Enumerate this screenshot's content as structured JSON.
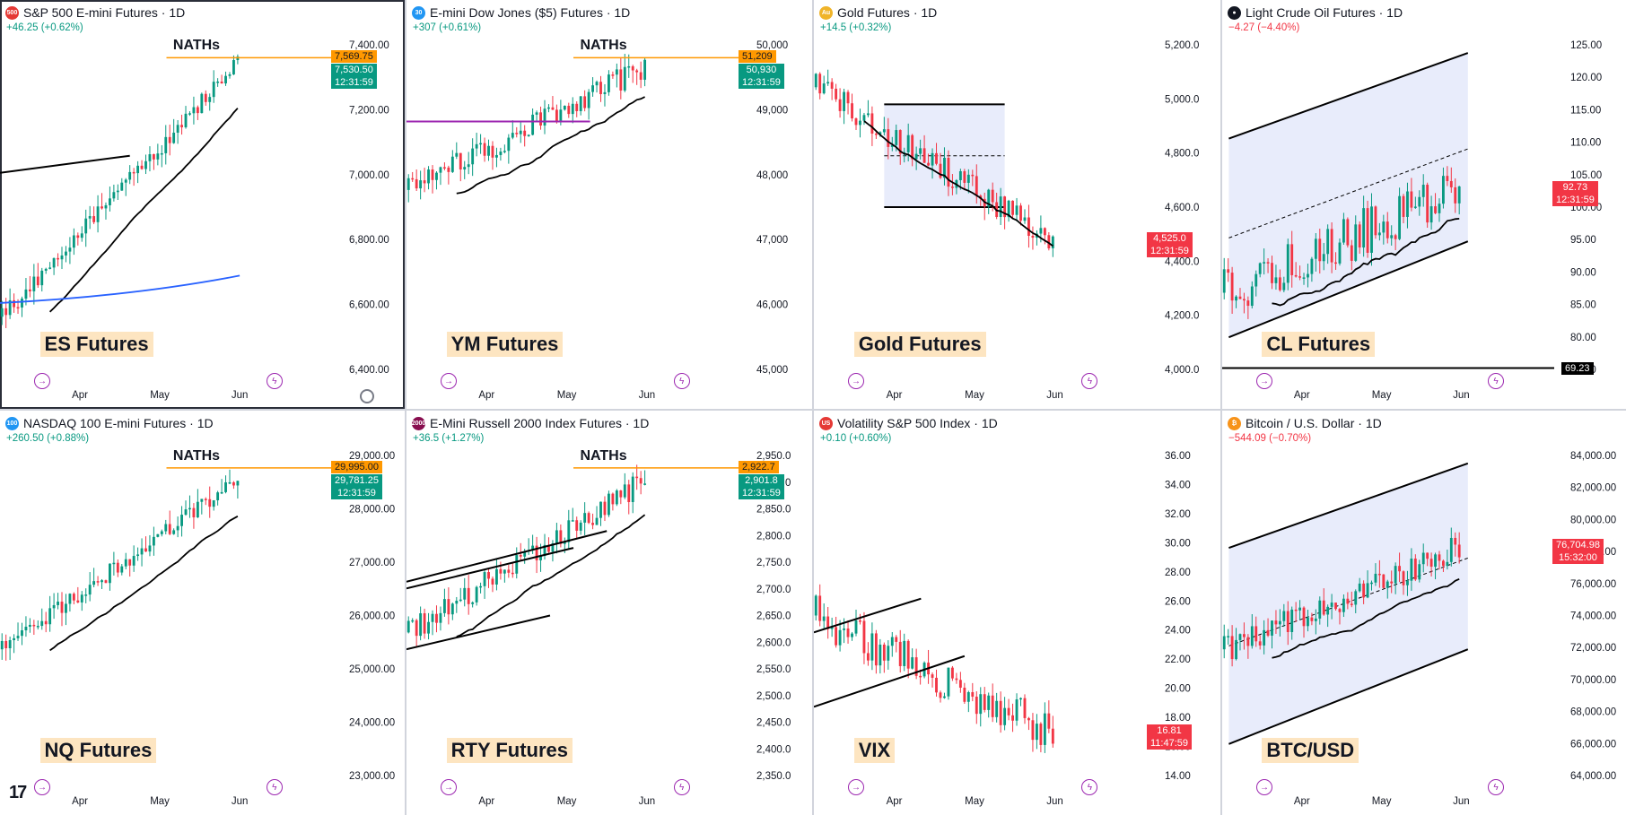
{
  "layout_grid": "4x2",
  "colors": {
    "up": "#089981",
    "down": "#f23645",
    "ma": "#000000",
    "ma200": "#2962ff",
    "ath_line": "#ff9800",
    "channel_fill": "#e8ecfb",
    "purple_line": "#9c27b0",
    "label_bg": "#fde5c1"
  },
  "panels": [
    {
      "id": "es",
      "icon_text": "500",
      "icon_color": "#e53935",
      "title": "S&P 500 E-mini Futures · 1D",
      "change": "+46.25 (+0.62%)",
      "direction": "up",
      "label": "ES Futures",
      "nath": "NATHs",
      "ath_price": "7,569.75",
      "last_price": "7,530.50",
      "countdown": "12:31:59",
      "y_ticks": [
        "7,400.00",
        "7,200.00",
        "7,000.00",
        "6,800.00",
        "6,600.00",
        "6,400.00"
      ],
      "x_ticks": [
        "Apr",
        "May",
        "Jun"
      ]
    },
    {
      "id": "ym",
      "icon_text": "30",
      "icon_color": "#2196f3",
      "title": "E-mini Dow Jones ($5) Futures · 1D",
      "change": "+307 (+0.61%)",
      "direction": "up",
      "label": "YM Futures",
      "nath": "NATHs",
      "ath_price": "51,209",
      "last_price": "50,930",
      "countdown": "12:31:59",
      "y_ticks": [
        "50,000",
        "49,000",
        "48,000",
        "47,000",
        "46,000",
        "45,000"
      ],
      "x_ticks": [
        "Apr",
        "May",
        "Jun"
      ]
    },
    {
      "id": "gc",
      "icon_text": "Au",
      "icon_color": "#f0b429",
      "title": "Gold Futures · 1D",
      "change": "+14.5 (+0.32%)",
      "direction": "up",
      "label": "Gold Futures",
      "nath": "",
      "ath_price": "",
      "last_price": "4,525.0",
      "countdown": "12:31:59",
      "y_ticks": [
        "5,200.0",
        "5,000.0",
        "4,800.0",
        "4,600.0",
        "4,400.0",
        "4,200.0",
        "4,000.0"
      ],
      "x_ticks": [
        "Apr",
        "May",
        "Jun"
      ]
    },
    {
      "id": "cl",
      "icon_text": "●",
      "icon_color": "#131722",
      "title": "Light Crude Oil Futures · 1D",
      "change": "−4.27 (−4.40%)",
      "direction": "down",
      "label": "CL Futures",
      "nath": "",
      "ath_price": "",
      "last_price": "92.73",
      "countdown": "12:31:59",
      "level_tag": "69.23",
      "y_ticks": [
        "125.00",
        "120.00",
        "115.00",
        "110.00",
        "105.00",
        "100.00",
        "95.00",
        "90.00",
        "85.00",
        "80.00",
        "75.00"
      ],
      "x_ticks": [
        "Apr",
        "May",
        "Jun"
      ]
    },
    {
      "id": "nq",
      "icon_text": "100",
      "icon_color": "#2196f3",
      "title": "NASDAQ 100 E-mini Futures · 1D",
      "change": "+260.50 (+0.88%)",
      "direction": "up",
      "label": "NQ Futures",
      "nath": "NATHs",
      "ath_price": "29,995.00",
      "last_price": "29,781.25",
      "countdown": "12:31:59",
      "y_ticks": [
        "29,000.00",
        "28,000.00",
        "27,000.00",
        "26,000.00",
        "25,000.00",
        "24,000.00",
        "23,000.00"
      ],
      "x_ticks": [
        "Apr",
        "May",
        "Jun"
      ]
    },
    {
      "id": "rty",
      "icon_text": "2000",
      "icon_color": "#880e4f",
      "title": "E-Mini Russell 2000 Index Futures · 1D",
      "change": "+36.5 (+1.27%)",
      "direction": "up",
      "label": "RTY Futures",
      "nath": "NATHs",
      "ath_price": "2,922.7",
      "last_price": "2,901.8",
      "countdown": "12:31:59",
      "y_ticks": [
        "2,950.0",
        "2,900.0",
        "2,850.0",
        "2,800.0",
        "2,750.0",
        "2,700.0",
        "2,650.0",
        "2,600.0",
        "2,550.0",
        "2,500.0",
        "2,450.0",
        "2,400.0",
        "2,350.0"
      ],
      "x_ticks": [
        "Apr",
        "May",
        "Jun"
      ]
    },
    {
      "id": "vix",
      "icon_text": "US",
      "icon_color": "#e53935",
      "title": "Volatility S&P 500 Index · 1D",
      "change": "+0.10 (+0.60%)",
      "direction": "up",
      "label": "VIX",
      "nath": "",
      "ath_price": "",
      "last_price": "16.81",
      "countdown": "11:47:59",
      "y_ticks": [
        "36.00",
        "34.00",
        "32.00",
        "30.00",
        "28.00",
        "26.00",
        "24.00",
        "22.00",
        "20.00",
        "18.00",
        "16.00",
        "14.00"
      ],
      "x_ticks": [
        "Apr",
        "May",
        "Jun"
      ]
    },
    {
      "id": "btc",
      "icon_text": "₿",
      "icon_color": "#f7931a",
      "title": "Bitcoin / U.S. Dollar · 1D",
      "change": "−544.09 (−0.70%)",
      "direction": "down",
      "label": "BTC/USD",
      "nath": "",
      "ath_price": "",
      "last_price": "76,704.98",
      "countdown": "15:32:00",
      "y_ticks": [
        "84,000.00",
        "82,000.00",
        "80,000.00",
        "78,000.00",
        "76,000.00",
        "74,000.00",
        "72,000.00",
        "70,000.00",
        "68,000.00",
        "66,000.00",
        "64,000.00"
      ],
      "x_ticks": [
        "Apr",
        "May",
        "Jun"
      ]
    }
  ]
}
